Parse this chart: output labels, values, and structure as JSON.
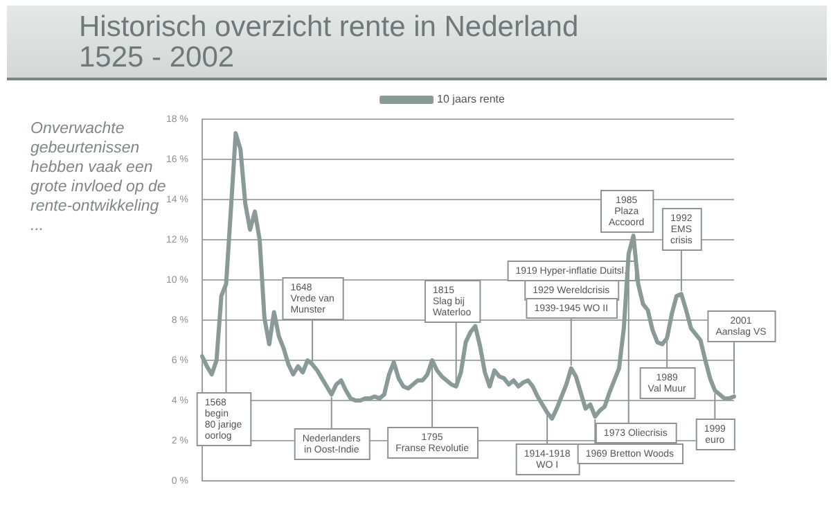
{
  "chart_data": {
    "type": "line",
    "title": "Historisch overzicht rente in Nederland",
    "subtitle": "1525 - 2002",
    "categories": [
      null,
      null,
      null,
      null,
      null,
      null,
      null,
      null,
      null,
      null,
      null,
      null,
      null,
      null,
      null,
      null,
      null,
      null,
      null,
      null,
      null,
      null,
      null,
      null,
      null,
      null,
      null,
      null,
      null,
      null,
      null,
      null,
      null,
      null,
      null,
      null,
      null,
      null,
      null,
      null,
      null,
      null,
      null,
      null,
      null,
      null,
      null,
      null,
      null,
      null,
      null,
      null,
      null,
      null,
      null,
      null,
      null,
      null,
      null,
      null,
      null,
      null,
      null,
      null,
      null,
      null,
      null,
      null,
      null,
      null,
      null,
      null,
      null,
      null,
      null,
      null,
      null,
      null,
      null,
      null,
      null,
      null,
      null,
      null,
      null,
      null,
      null,
      null,
      null,
      null,
      null,
      null,
      null,
      null,
      null,
      null,
      null,
      null,
      null,
      null,
      null,
      null,
      null,
      null,
      null,
      null,
      null,
      null,
      null,
      null,
      null,
      null
    ],
    "series": [
      {
        "name": "10 jaars rente",
        "color": "#8a9a98",
        "values": [
          6.2,
          5.7,
          5.3,
          6.0,
          9.2,
          9.8,
          13.5,
          17.3,
          16.5,
          13.8,
          12.5,
          13.4,
          12.0,
          8.1,
          6.8,
          8.4,
          7.2,
          6.6,
          5.8,
          5.3,
          5.7,
          5.4,
          6.0,
          5.8,
          5.5,
          5.1,
          4.7,
          4.3,
          4.8,
          5.0,
          4.5,
          4.1,
          4.0,
          4.0,
          4.1,
          4.1,
          4.2,
          4.1,
          4.3,
          5.3,
          5.9,
          5.1,
          4.7,
          4.6,
          4.8,
          5.0,
          5.0,
          5.3,
          6.0,
          5.5,
          5.2,
          5.0,
          4.8,
          4.7,
          5.4,
          6.9,
          7.4,
          7.7,
          6.7,
          5.4,
          4.7,
          5.5,
          5.2,
          5.1,
          4.8,
          5.0,
          4.7,
          4.9,
          5.0,
          4.7,
          4.2,
          3.8,
          3.4,
          3.1,
          3.6,
          4.2,
          4.8,
          5.6,
          5.2,
          4.4,
          3.6,
          3.8,
          3.2,
          3.5,
          3.7,
          4.4,
          5.0,
          5.6,
          7.6,
          11.3,
          12.2,
          9.8,
          8.8,
          8.5,
          7.5,
          6.9,
          6.8,
          7.1,
          8.3,
          9.2,
          9.3,
          8.5,
          7.6,
          7.3,
          7.0,
          6.0,
          5.1,
          4.5,
          4.3,
          4.1,
          4.1,
          4.2
        ]
      }
    ],
    "ylim": [
      0,
      18
    ],
    "yticks": [
      {
        "value": 0,
        "label": "0 %"
      },
      {
        "value": 2,
        "label": "2 %"
      },
      {
        "value": 4,
        "label": "4 %"
      },
      {
        "value": 6,
        "label": "6 %"
      },
      {
        "value": 8,
        "label": "8 %"
      },
      {
        "value": 10,
        "label": "10 %"
      },
      {
        "value": 12,
        "label": "12 %"
      },
      {
        "value": 14,
        "label": "14 %"
      },
      {
        "value": 16,
        "label": "16 %"
      },
      {
        "value": 18,
        "label": "18 %"
      }
    ],
    "tick_labels": "y",
    "grid": "y",
    "legend": "top",
    "marker": "none",
    "line_style": "solid",
    "annotations": [
      "Onverwachte gebeurtenissen hebben vaak een grote invloed op de rente-ontwikkeling ...",
      "1568\nbegin\n80 jarige\noorlog",
      "1648\nVrede van\nMunster",
      "Nederlanders\nin Oost-Indie",
      "1795\nFranse Revolutie",
      "1815\nSlag bij\nWaterloo",
      "1914-1918\nWO I",
      "1919 Hyper-inflatie Duitsl.",
      "1929 Wereldcrisis",
      "1939-1945 WO II",
      "1973 Oliecrisis",
      "1969 Bretton Woods",
      "1985\nPlaza\nAccoord",
      "1992\nEMS\ncrisis",
      "1989\nVal Muur",
      "1999\neuro",
      "2001\nAanslag VS"
    ]
  }
}
